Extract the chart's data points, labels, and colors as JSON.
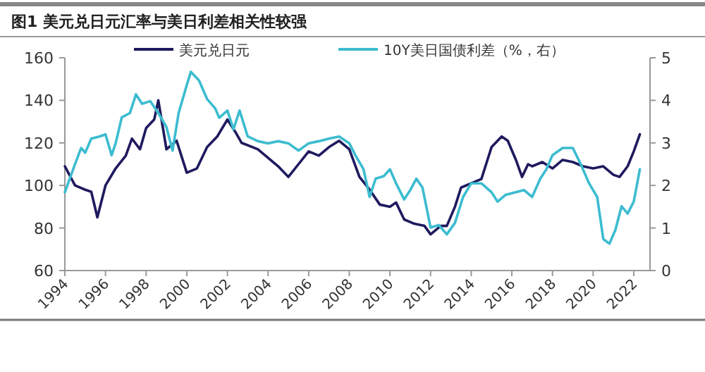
{
  "chart_data": {
    "type": "line",
    "title": "图1 美元兑日元汇率与美日利差相关性较强",
    "legend": "top",
    "grid": false,
    "xlim": [
      1994,
      2022.8
    ],
    "xticks": [
      1994,
      1996,
      1998,
      2000,
      2002,
      2004,
      2006,
      2008,
      2010,
      2012,
      2014,
      2016,
      2018,
      2020,
      2022
    ],
    "ylim": [
      60,
      160
    ],
    "yticks": [
      60,
      80,
      100,
      120,
      140,
      160
    ],
    "y2lim": [
      0,
      5
    ],
    "y2ticks": [
      0,
      1,
      2,
      3,
      4,
      5
    ],
    "series": [
      {
        "name": "美元兑日元",
        "color": "#1f1a5e",
        "x": [
          1994,
          1994.5,
          1995,
          1995.3,
          1995.6,
          1996,
          1996.5,
          1997,
          1997.3,
          1997.7,
          1998,
          1998.4,
          1998.6,
          1999,
          1999.5,
          2000,
          2000.5,
          2001,
          2001.5,
          2002,
          2002.4,
          2002.7,
          2003.5,
          2004.5,
          2005,
          2005.5,
          2006,
          2006.5,
          2007,
          2007.5,
          2008,
          2008.5,
          2009,
          2009.5,
          2010,
          2010.3,
          2010.7,
          2011.2,
          2011.7,
          2012,
          2012.5,
          2012.8,
          2013.2,
          2013.5,
          2014,
          2014.5,
          2014.8,
          2015,
          2015.5,
          2015.8,
          2016.2,
          2016.5,
          2016.8,
          2017,
          2017.5,
          2018,
          2018.5,
          2019,
          2019.5,
          2020,
          2020.5,
          2021,
          2021.3,
          2021.7,
          2022,
          2022.3
        ],
        "values": [
          109,
          100,
          98,
          97,
          85,
          100,
          108,
          114,
          122,
          117,
          127,
          131,
          140,
          117,
          121,
          106,
          108,
          118,
          123,
          131,
          125,
          120,
          117,
          109,
          104,
          110,
          116,
          114,
          118,
          121,
          117,
          104,
          98,
          91,
          90,
          92,
          84,
          82,
          81,
          77,
          81,
          81,
          90,
          99,
          101,
          103,
          112,
          118,
          123,
          121,
          112,
          104,
          110,
          109,
          111,
          108,
          112,
          111,
          109,
          108,
          109,
          105,
          104,
          109,
          116,
          124
        ]
      },
      {
        "name": "10Y美日国债利差（%，右）",
        "color": "#3cbcd0",
        "axis": "y2",
        "x": [
          1994,
          1994.5,
          1994.8,
          1995,
          1995.3,
          1995.7,
          1996,
          1996.3,
          1996.5,
          1996.8,
          1997.2,
          1997.5,
          1997.8,
          1998.2,
          1998.6,
          1999,
          1999.3,
          1999.6,
          2000,
          2000.2,
          2000.6,
          2001,
          2001.4,
          2001.6,
          2002,
          2002.3,
          2002.6,
          2003,
          2003.5,
          2004,
          2004.5,
          2005,
          2005.5,
          2006,
          2006.5,
          2007,
          2007.5,
          2008,
          2008.3,
          2008.7,
          2009,
          2009.3,
          2009.7,
          2010,
          2010.3,
          2010.7,
          2011,
          2011.3,
          2011.6,
          2012,
          2012.4,
          2012.8,
          2013.2,
          2013.6,
          2014,
          2014.5,
          2015,
          2015.3,
          2015.7,
          2016.2,
          2016.6,
          2017,
          2017.4,
          2017.7,
          2018,
          2018.5,
          2019,
          2019.4,
          2019.8,
          2020.2,
          2020.5,
          2020.8,
          2021.1,
          2021.4,
          2021.7,
          2022,
          2022.3
        ],
        "values": [
          1.84,
          2.5,
          2.88,
          2.77,
          3.1,
          3.15,
          3.2,
          2.71,
          2.99,
          3.6,
          3.7,
          4.14,
          3.92,
          3.98,
          3.7,
          3.37,
          2.82,
          3.7,
          4.36,
          4.67,
          4.47,
          4.03,
          3.81,
          3.59,
          3.76,
          3.32,
          3.76,
          3.15,
          3.04,
          2.99,
          3.04,
          2.99,
          2.82,
          2.99,
          3.04,
          3.1,
          3.15,
          2.99,
          2.71,
          2.38,
          1.73,
          2.16,
          2.22,
          2.38,
          2.05,
          1.67,
          1.89,
          2.16,
          1.95,
          1.01,
          1.07,
          0.85,
          1.12,
          1.73,
          2.05,
          2.05,
          1.84,
          1.62,
          1.78,
          1.84,
          1.89,
          1.73,
          2.16,
          2.38,
          2.71,
          2.88,
          2.88,
          2.49,
          2.05,
          1.73,
          0.74,
          0.63,
          0.96,
          1.51,
          1.34,
          1.62,
          2.38
        ]
      }
    ]
  }
}
